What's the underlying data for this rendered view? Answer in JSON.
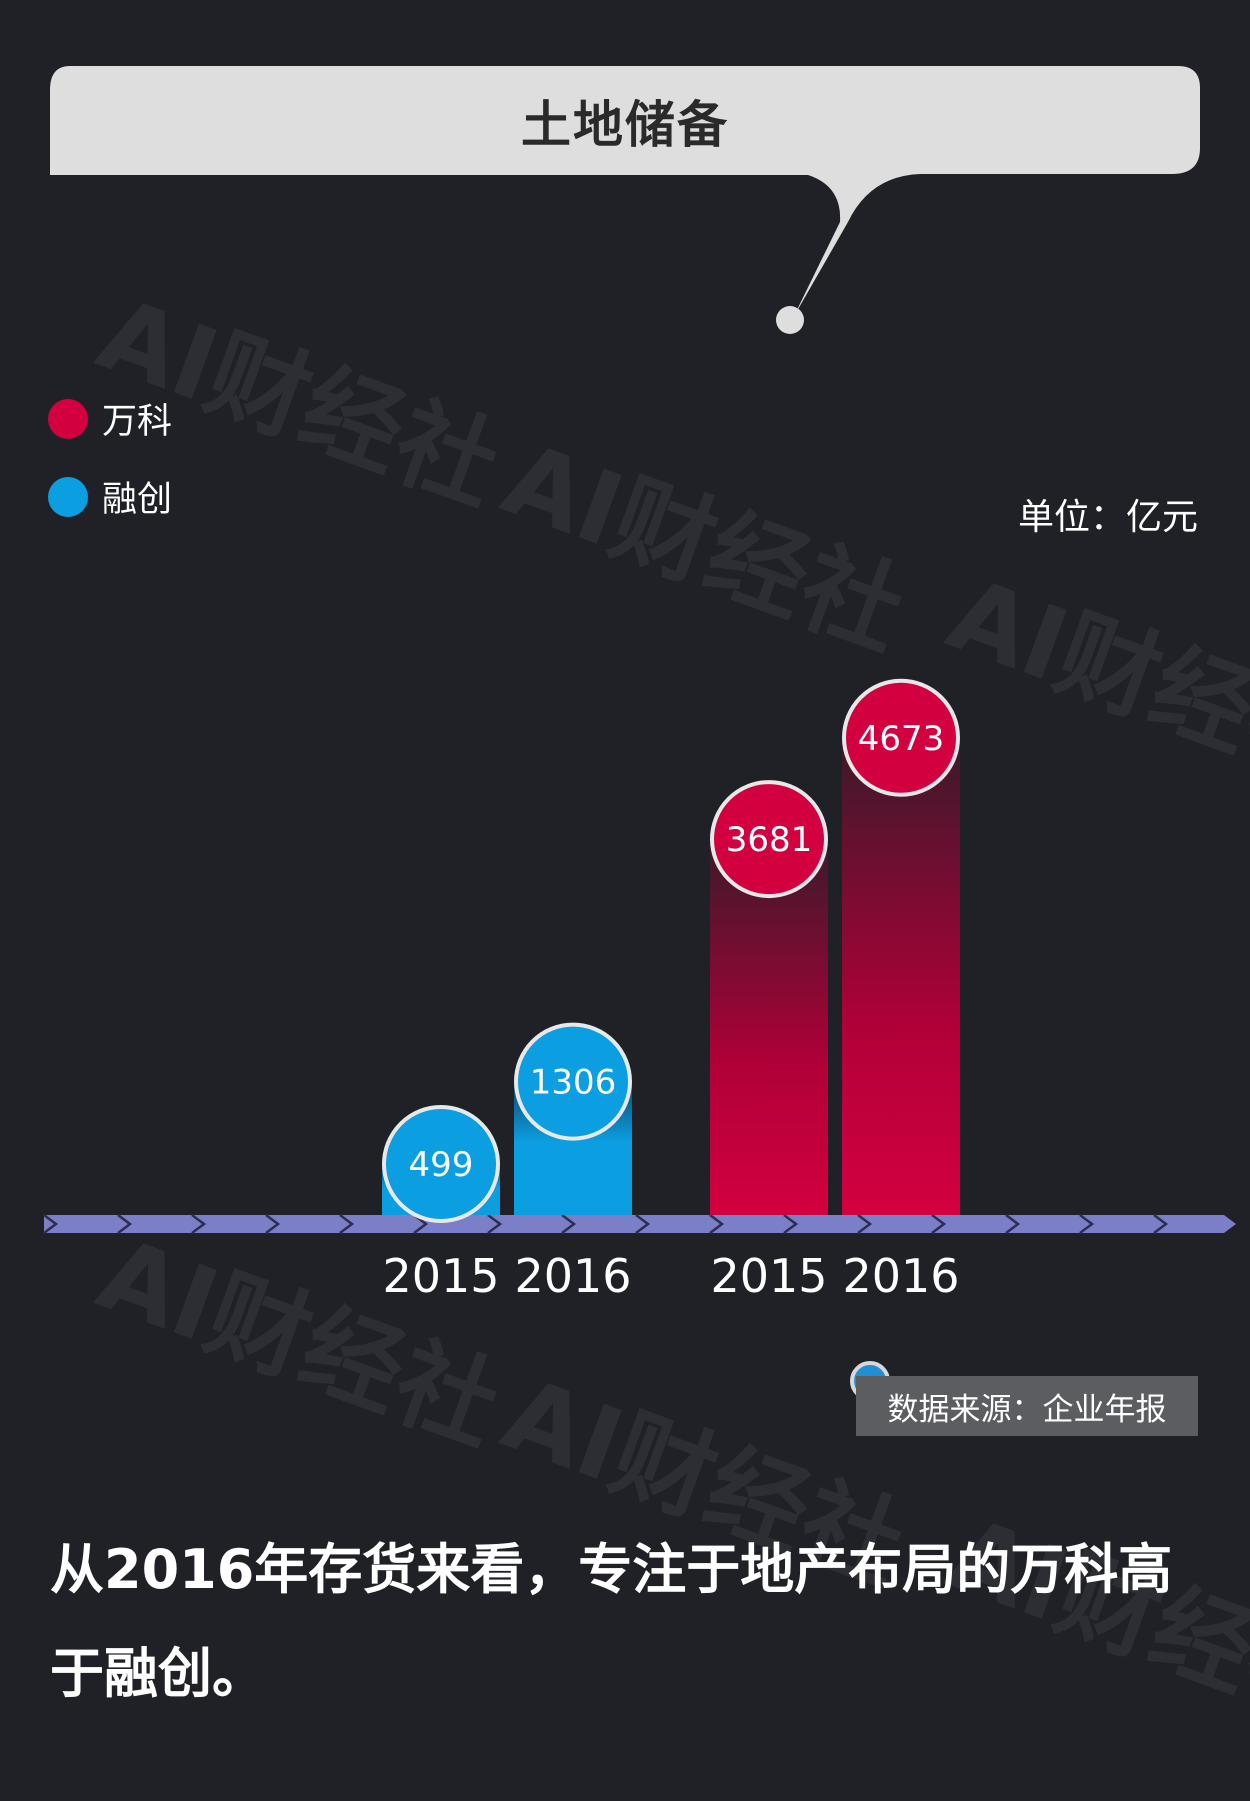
{
  "title": "土地储备",
  "legend": [
    {
      "label": "万科",
      "color": "#d3003f"
    },
    {
      "label": "融创",
      "color": "#0b9ee0"
    }
  ],
  "unit": "单位：亿元",
  "source": "数据来源：企业年报",
  "caption": "从2016年存货来看，专注于地产布局的万科高于融创。",
  "watermark": "AI财经社",
  "colors": {
    "background": "#1f2126",
    "axis": "#7b7fc7",
    "vanke": "#d3003f",
    "sunac": "#0b9ee0"
  },
  "chart_data": {
    "type": "bar",
    "categories": [
      "2015",
      "2016"
    ],
    "series": [
      {
        "name": "融创",
        "values": [
          499,
          1306
        ]
      },
      {
        "name": "万科",
        "values": [
          3681,
          4673
        ]
      }
    ],
    "xlabel": "",
    "ylabel": "",
    "ylim": [
      0,
      4700
    ],
    "legend_position": "top-left",
    "grid": false
  }
}
